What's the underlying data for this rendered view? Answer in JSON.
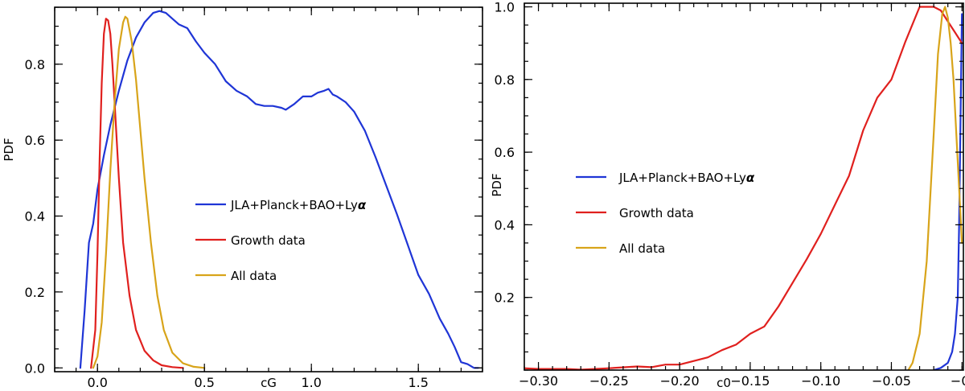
{
  "chart_data": [
    {
      "type": "line",
      "title": "",
      "xlabel": "cG",
      "ylabel": "PDF",
      "xlim": [
        -0.2,
        1.8
      ],
      "ylim": [
        -0.01,
        0.95
      ],
      "xticks": [
        0.0,
        0.5,
        1.0,
        1.5
      ],
      "xtick_labels": [
        "0.0",
        "0.5",
        "1.0",
        "1.5"
      ],
      "yticks": [
        0.0,
        0.2,
        0.4,
        0.6,
        0.8
      ],
      "ytick_labels": [
        "0.0",
        "0.2",
        "0.4",
        "0.6",
        "0.8"
      ],
      "legend_position": "center-right",
      "series": [
        {
          "name": "JLA+Planck+BAO+Ly",
          "name_suffix": "α",
          "color": "#1f35d6",
          "x": [
            -0.08,
            -0.06,
            -0.04,
            -0.02,
            0.0,
            0.03,
            0.06,
            0.1,
            0.14,
            0.18,
            0.22,
            0.26,
            0.29,
            0.32,
            0.35,
            0.38,
            0.42,
            0.46,
            0.5,
            0.55,
            0.6,
            0.65,
            0.7,
            0.74,
            0.78,
            0.82,
            0.86,
            0.88,
            0.92,
            0.96,
            1.0,
            1.03,
            1.06,
            1.08,
            1.1,
            1.12,
            1.16,
            1.2,
            1.25,
            1.3,
            1.35,
            1.4,
            1.45,
            1.5,
            1.55,
            1.6,
            1.64,
            1.67,
            1.7,
            1.73,
            1.76,
            1.78
          ],
          "y": [
            0.0,
            0.15,
            0.33,
            0.38,
            0.47,
            0.56,
            0.64,
            0.73,
            0.81,
            0.87,
            0.91,
            0.935,
            0.94,
            0.935,
            0.92,
            0.905,
            0.895,
            0.86,
            0.83,
            0.8,
            0.755,
            0.73,
            0.715,
            0.695,
            0.69,
            0.69,
            0.685,
            0.68,
            0.695,
            0.715,
            0.715,
            0.725,
            0.73,
            0.735,
            0.72,
            0.715,
            0.7,
            0.675,
            0.625,
            0.555,
            0.48,
            0.405,
            0.325,
            0.245,
            0.195,
            0.13,
            0.09,
            0.055,
            0.015,
            0.01,
            0.0,
            0.0
          ]
        },
        {
          "name": "Growth data",
          "color": "#e0201e",
          "x": [
            -0.03,
            -0.01,
            0.0,
            0.01,
            0.02,
            0.03,
            0.04,
            0.05,
            0.06,
            0.07,
            0.08,
            0.1,
            0.12,
            0.15,
            0.18,
            0.22,
            0.26,
            0.3,
            0.35,
            0.4
          ],
          "y": [
            0.0,
            0.1,
            0.3,
            0.55,
            0.75,
            0.88,
            0.92,
            0.915,
            0.88,
            0.8,
            0.7,
            0.5,
            0.33,
            0.19,
            0.1,
            0.045,
            0.02,
            0.007,
            0.002,
            0.0
          ]
        },
        {
          "name": "All data",
          "color": "#d8a41a",
          "x": [
            -0.02,
            0.0,
            0.02,
            0.04,
            0.06,
            0.08,
            0.1,
            0.12,
            0.13,
            0.14,
            0.16,
            0.18,
            0.2,
            0.22,
            0.25,
            0.28,
            0.31,
            0.35,
            0.4,
            0.45,
            0.5
          ],
          "y": [
            0.0,
            0.03,
            0.12,
            0.3,
            0.52,
            0.7,
            0.84,
            0.91,
            0.925,
            0.92,
            0.86,
            0.76,
            0.63,
            0.5,
            0.33,
            0.19,
            0.1,
            0.04,
            0.012,
            0.003,
            0.0
          ]
        }
      ]
    },
    {
      "type": "line",
      "title": "",
      "xlabel": "c0",
      "ylabel": "PDF",
      "xlim": [
        -0.31,
        0.001
      ],
      "ylim": [
        0.0,
        1.01
      ],
      "xticks": [
        -0.3,
        -0.25,
        -0.2,
        -0.15,
        -0.1,
        -0.05,
        0.0
      ],
      "xtick_labels": [
        "−0.30",
        "−0.25",
        "−0.20",
        "−0.15",
        "−0.10",
        "−0.05",
        "−0."
      ],
      "yticks": [
        0.2,
        0.4,
        0.6,
        0.8,
        1.0
      ],
      "ytick_labels": [
        "0.2",
        "0.4",
        "0.6",
        "0.8",
        "1.0"
      ],
      "legend_position": "center-left",
      "series": [
        {
          "name": "JLA+Planck+BAO+Ly",
          "name_suffix": "α",
          "color": "#1f35d6",
          "x": [
            -0.02,
            -0.015,
            -0.01,
            -0.007,
            -0.005,
            -0.003,
            -0.002,
            -0.001,
            0.0
          ],
          "y": [
            0.0,
            0.006,
            0.02,
            0.05,
            0.1,
            0.2,
            0.4,
            0.7,
            0.98
          ]
        },
        {
          "name": "Growth data",
          "color": "#e0201e",
          "x": [
            -0.31,
            -0.3,
            -0.28,
            -0.27,
            -0.25,
            -0.23,
            -0.22,
            -0.21,
            -0.2,
            -0.19,
            -0.18,
            -0.17,
            -0.16,
            -0.15,
            -0.14,
            -0.13,
            -0.12,
            -0.11,
            -0.1,
            -0.09,
            -0.08,
            -0.07,
            -0.06,
            -0.05,
            -0.04,
            -0.03,
            -0.025,
            -0.02,
            -0.015,
            -0.01,
            -0.005,
            0.0
          ],
          "y": [
            0.005,
            0.003,
            0.003,
            0.001,
            0.005,
            0.01,
            0.008,
            0.015,
            0.015,
            0.025,
            0.035,
            0.055,
            0.07,
            0.1,
            0.12,
            0.175,
            0.24,
            0.305,
            0.375,
            0.455,
            0.535,
            0.66,
            0.75,
            0.8,
            0.905,
            1.0,
            1.0,
            1.0,
            0.99,
            0.96,
            0.93,
            0.9
          ]
        },
        {
          "name": "All data",
          "color": "#d8a41a",
          "x": [
            -0.038,
            -0.035,
            -0.03,
            -0.025,
            -0.02,
            -0.017,
            -0.014,
            -0.012,
            -0.01,
            -0.008,
            -0.006,
            -0.004,
            -0.002,
            0.0
          ],
          "y": [
            0.0,
            0.02,
            0.1,
            0.3,
            0.65,
            0.87,
            0.98,
            1.0,
            0.97,
            0.9,
            0.8,
            0.65,
            0.5,
            0.35
          ]
        }
      ]
    }
  ]
}
